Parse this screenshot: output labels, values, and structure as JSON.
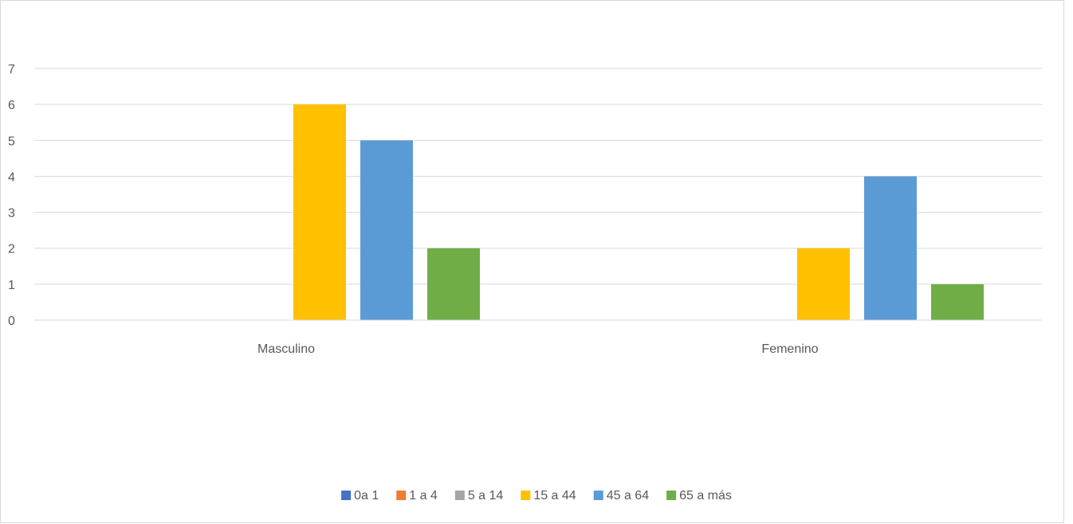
{
  "chart_data": {
    "type": "bar",
    "title": "",
    "xlabel": "",
    "ylabel": "",
    "categories": [
      "Masculino",
      "Femenino"
    ],
    "ylim": [
      0,
      7
    ],
    "yticks": [
      0,
      1,
      2,
      3,
      4,
      5,
      6,
      7
    ],
    "grid": true,
    "legend_position": "bottom",
    "series": [
      {
        "name": "0a 1",
        "color": "#4472c4",
        "values": [
          0,
          0
        ]
      },
      {
        "name": "1 a 4",
        "color": "#ed7d31",
        "values": [
          0,
          0
        ]
      },
      {
        "name": "5 a 14",
        "color": "#a5a5a5",
        "values": [
          0,
          0
        ]
      },
      {
        "name": "15 a 44",
        "color": "#ffc000",
        "values": [
          6,
          2
        ]
      },
      {
        "name": "45 a 64",
        "color": "#5b9bd5",
        "values": [
          5,
          4
        ]
      },
      {
        "name": "65 a más",
        "color": "#70ad47",
        "values": [
          2,
          1
        ]
      }
    ]
  }
}
